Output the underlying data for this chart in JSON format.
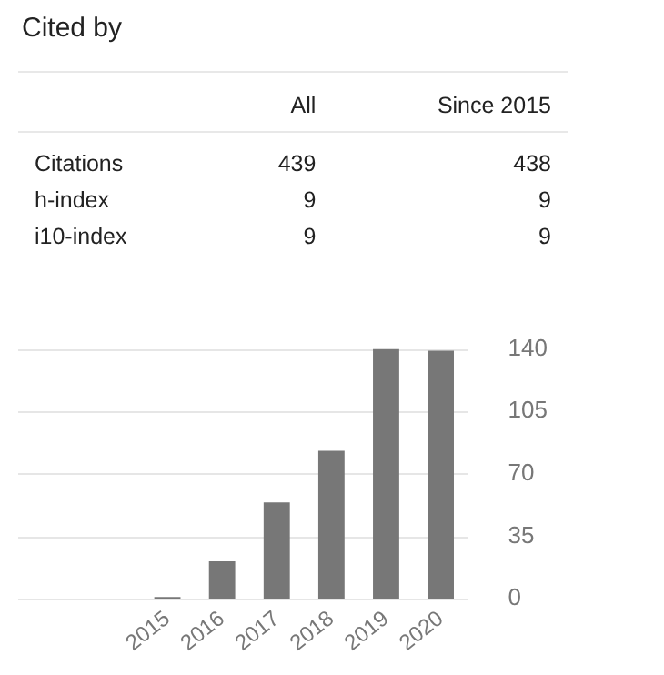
{
  "chart_data": [
    {
      "type": "other",
      "title": "Cited by",
      "categories": [
        "Citations",
        "h-index",
        "i10-index"
      ],
      "series": [
        {
          "name": "All",
          "values": [
            439,
            9,
            9
          ]
        },
        {
          "name": "Since 2015",
          "values": [
            438,
            9,
            9
          ]
        }
      ],
      "data_labels": true
    },
    {
      "type": "bar",
      "categories": [
        "2015",
        "2016",
        "2017",
        "2018",
        "2019",
        "2020"
      ],
      "values": [
        1,
        21,
        54,
        83,
        140,
        139
      ],
      "color": "#777777",
      "ylim": [
        0,
        140
      ],
      "yticks": [
        0,
        35,
        70,
        105,
        140
      ],
      "grid": "y",
      "legend": false
    }
  ]
}
